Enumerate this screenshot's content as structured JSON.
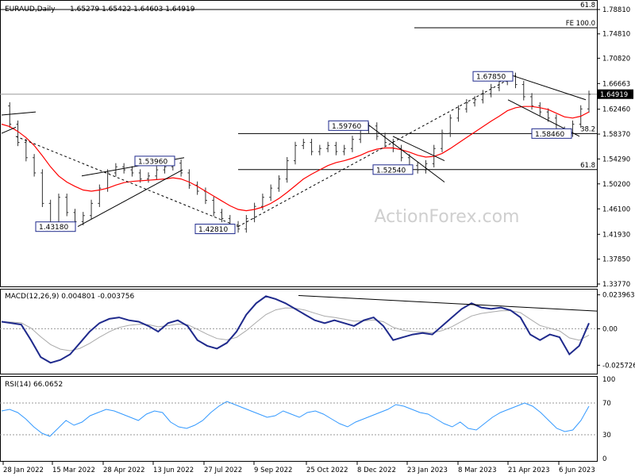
{
  "header": {
    "symbol": "EURAUD,Daily",
    "ohlc": "1.65279 1.65422 1.64603 1.64919"
  },
  "watermark": "ActionForex.com",
  "colors": {
    "bull_candle": "#333333",
    "ma_fast": "#ff0000",
    "macd_line": "#1f2a8c",
    "signal_line": "#aaaaaa",
    "rsi_line": "#3399ff",
    "label_box": "#1f2a8c",
    "last_price_box": "#000000"
  },
  "chart_data": [
    {
      "type": "line",
      "panel": "price",
      "title": "EURAUD,Daily 1.65279 1.65422 1.64603 1.64919",
      "y_ticks": [
        "1.78810",
        "1.74810",
        "1.70820",
        "1.66663",
        "1.64919",
        "1.62460",
        "1.58370",
        "1.54290",
        "1.50200",
        "1.46100",
        "1.41930",
        "1.37850",
        "1.33770"
      ],
      "ylim": [
        1.3377,
        1.7881
      ],
      "last_price": 1.64919,
      "x_ticks": [
        "28 Jan 2022",
        "15 Mar 2022",
        "28 Apr 2022",
        "13 Jun 2022",
        "27 Jul 2022",
        "9 Sep 2022",
        "25 Oct 2022",
        "8 Dec 2022",
        "23 Jan 2023",
        "8 Mar 2023",
        "21 Apr 2023",
        "6 Jun 2023"
      ],
      "series": [
        {
          "values": [
            1.63,
            1.6,
            1.57,
            1.545,
            1.52,
            1.47,
            1.432,
            1.48,
            1.455,
            1.44,
            1.45,
            1.47,
            1.495,
            1.52,
            1.53,
            1.525,
            1.52,
            1.51,
            1.515,
            1.525,
            1.53,
            1.536,
            1.52,
            1.5,
            1.49,
            1.475,
            1.455,
            1.445,
            1.435,
            1.428,
            1.445,
            1.465,
            1.48,
            1.495,
            1.51,
            1.54,
            1.565,
            1.57,
            1.555,
            1.56,
            1.565,
            1.555,
            1.56,
            1.575,
            1.59,
            1.597,
            1.58,
            1.57,
            1.56,
            1.545,
            1.532,
            1.525,
            1.535,
            1.56,
            1.585,
            1.61,
            1.625,
            1.635,
            1.64,
            1.65,
            1.66,
            1.67,
            1.6785,
            1.665,
            1.645,
            1.63,
            1.62,
            1.61,
            1.59,
            1.585,
            1.6,
            1.625,
            1.649
          ]
        },
        {
          "values": [
            1.6,
            1.596,
            1.588,
            1.578,
            1.565,
            1.548,
            1.53,
            1.515,
            1.505,
            1.498,
            1.492,
            1.49,
            1.492,
            1.495,
            1.5,
            1.504,
            1.506,
            1.507,
            1.508,
            1.509,
            1.51,
            1.512,
            1.51,
            1.505,
            1.498,
            1.49,
            1.482,
            1.474,
            1.466,
            1.46,
            1.458,
            1.46,
            1.464,
            1.47,
            1.478,
            1.488,
            1.499,
            1.51,
            1.518,
            1.525,
            1.532,
            1.537,
            1.54,
            1.544,
            1.549,
            1.555,
            1.559,
            1.561,
            1.561,
            1.558,
            1.554,
            1.549,
            1.546,
            1.547,
            1.552,
            1.56,
            1.569,
            1.578,
            1.587,
            1.596,
            1.605,
            1.613,
            1.622,
            1.627,
            1.629,
            1.629,
            1.627,
            1.624,
            1.618,
            1.612,
            1.61,
            1.613,
            1.62
          ]
        }
      ],
      "annotations": [
        {
          "label": "1.43180",
          "value": 1.4318
        },
        {
          "label": "1.53960",
          "value": 1.5396
        },
        {
          "label": "1.42810",
          "value": 1.4281
        },
        {
          "label": "1.59760",
          "value": 1.5976
        },
        {
          "label": "1.52540",
          "value": 1.5254
        },
        {
          "label": "1.67850",
          "value": 1.6785
        },
        {
          "label": "1.58460",
          "value": 1.5846
        }
      ],
      "levels": [
        {
          "label": "61.8",
          "value": 1.7881
        },
        {
          "label": "FE 100.0",
          "value": 1.7581
        },
        {
          "label": "38.2",
          "value": 1.5846
        },
        {
          "label": "61.8",
          "value": 1.5254
        }
      ]
    },
    {
      "type": "line",
      "panel": "macd",
      "title": "MACD(12,26,9) 0.004801 -0.003756",
      "y_ticks": [
        "0.023963",
        "0.00",
        "-0.025726"
      ],
      "ylim": [
        -0.03,
        0.026
      ],
      "series": [
        {
          "values": [
            0.005,
            0.004,
            0.003,
            -0.008,
            -0.02,
            -0.024,
            -0.022,
            -0.018,
            -0.01,
            -0.002,
            0.004,
            0.007,
            0.008,
            0.006,
            0.005,
            0.002,
            -0.002,
            0.004,
            0.006,
            0.002,
            -0.008,
            -0.012,
            -0.014,
            -0.01,
            -0.002,
            0.01,
            0.018,
            0.023,
            0.021,
            0.018,
            0.014,
            0.01,
            0.006,
            0.004,
            0.006,
            0.004,
            0.002,
            0.006,
            0.008,
            0.002,
            -0.008,
            -0.006,
            -0.004,
            -0.003,
            -0.004,
            0.002,
            0.008,
            0.014,
            0.018,
            0.015,
            0.014,
            0.015,
            0.013,
            0.008,
            -0.004,
            -0.008,
            -0.004,
            -0.006,
            -0.018,
            -0.012,
            0.004
          ]
        }
      ]
    },
    {
      "type": "line",
      "panel": "rsi",
      "title": "RSI(14) 66.0652",
      "y_ticks": [
        "100",
        "70",
        "30",
        "0"
      ],
      "ylim": [
        0,
        100
      ],
      "series": [
        {
          "values": [
            60,
            62,
            58,
            50,
            40,
            32,
            28,
            38,
            48,
            42,
            46,
            54,
            58,
            62,
            60,
            56,
            52,
            48,
            56,
            60,
            58,
            46,
            40,
            38,
            42,
            48,
            58,
            66,
            72,
            68,
            64,
            60,
            56,
            52,
            54,
            60,
            56,
            52,
            58,
            60,
            56,
            50,
            44,
            40,
            46,
            50,
            54,
            58,
            62,
            68,
            66,
            62,
            58,
            56,
            50,
            44,
            40,
            46,
            38,
            36,
            44,
            52,
            58,
            62,
            66,
            70,
            66,
            58,
            48,
            38,
            34,
            36,
            48,
            66
          ]
        }
      ]
    }
  ]
}
